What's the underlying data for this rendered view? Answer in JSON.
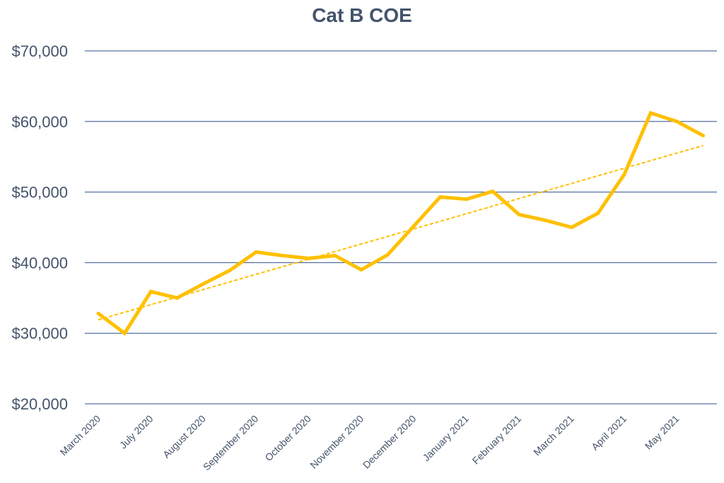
{
  "chart_data": {
    "type": "line",
    "title": "Cat B COE",
    "xlabel": "",
    "ylabel": "",
    "ylim": [
      20000,
      70000
    ],
    "yticks": [
      20000,
      30000,
      40000,
      50000,
      60000,
      70000
    ],
    "ytick_labels": [
      "$20,000",
      "$30,000",
      "$40,000",
      "$50,000",
      "$60,000",
      "$70,000"
    ],
    "grid": true,
    "legend": "none",
    "x_tick_labels": [
      "March 2020",
      "July 2020",
      "August 2020",
      "September 2020",
      "October 2020",
      "November 2020",
      "December 2020",
      "January 2021",
      "February 2021",
      "March 2021",
      "April 2021",
      "May 2021"
    ],
    "series": [
      {
        "color": "#ffc000",
        "values": [
          32800,
          30000,
          35900,
          35000,
          37000,
          38900,
          41500,
          41000,
          40600,
          41000,
          39000,
          41100,
          45200,
          49300,
          49000,
          50100,
          46800,
          46000,
          45000,
          47000,
          52500,
          61200,
          60000,
          58000
        ]
      }
    ],
    "trendline": {
      "style": "dashed",
      "color": "#ffc000",
      "start": 31900,
      "end": 56600
    }
  }
}
